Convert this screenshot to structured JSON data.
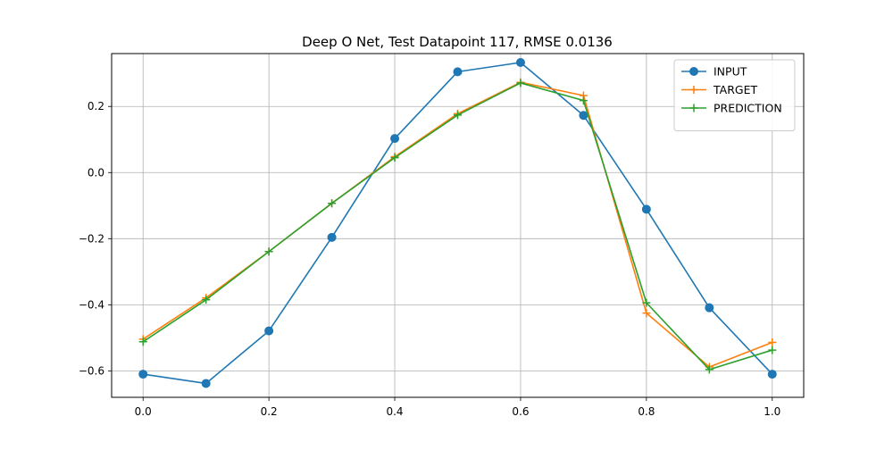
{
  "chart_data": {
    "type": "line",
    "title": "Deep O Net, Test Datapoint 117, RMSE 0.0136",
    "xlabel": "",
    "ylabel": "",
    "xlim": [
      -0.05,
      1.05
    ],
    "ylim": [
      -0.68,
      0.36
    ],
    "xticks": [
      0.0,
      0.2,
      0.4,
      0.6,
      0.8,
      1.0
    ],
    "xtick_labels": [
      "0.0",
      "0.2",
      "0.4",
      "0.6",
      "0.8",
      "1.0"
    ],
    "yticks": [
      -0.6,
      -0.4,
      -0.2,
      0.0,
      0.2
    ],
    "ytick_labels": [
      "−0.6",
      "−0.4",
      "−0.2",
      "0.0",
      "0.2"
    ],
    "grid": true,
    "legend_position": "top-right",
    "x": [
      0.0,
      0.1,
      0.2,
      0.3,
      0.4,
      0.5,
      0.6,
      0.7,
      0.8,
      0.9,
      1.0
    ],
    "series": [
      {
        "name": "INPUT",
        "color": "#1f77b4",
        "marker": "circle",
        "values": [
          -0.61,
          -0.638,
          -0.479,
          -0.196,
          0.103,
          0.305,
          0.333,
          0.173,
          -0.111,
          -0.409,
          -0.61
        ]
      },
      {
        "name": "TARGET",
        "color": "#ff7f0e",
        "marker": "plus",
        "values": [
          -0.504,
          -0.379,
          -0.239,
          -0.093,
          0.048,
          0.178,
          0.273,
          0.233,
          -0.425,
          -0.588,
          -0.514
        ]
      },
      {
        "name": "PREDICTION",
        "color": "#2ca02c",
        "marker": "plus",
        "values": [
          -0.512,
          -0.385,
          -0.239,
          -0.093,
          0.045,
          0.174,
          0.271,
          0.218,
          -0.394,
          -0.596,
          -0.537
        ]
      }
    ]
  }
}
